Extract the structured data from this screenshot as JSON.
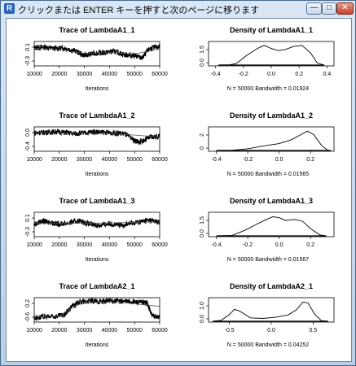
{
  "window": {
    "title": "クリックまたは ENTER キーを押すと次のページに移ります",
    "icon": "R-logo-icon",
    "controls": {
      "minimize": "—",
      "maximize": "□",
      "close": "✕"
    }
  },
  "panels": [
    {
      "trace": {
        "title": "Trace of LambdaA1_1",
        "xlabel": "Iterations",
        "xticks": [
          "10000",
          "20000",
          "30000",
          "40000",
          "50000",
          "60000"
        ],
        "yticks": [
          "0.1",
          "-0.3"
        ],
        "xlim": [
          10000,
          60000
        ],
        "ylim": [
          -0.4,
          0.3
        ],
        "series": [
          [
            10000,
            0.12
          ],
          [
            14000,
            0.14
          ],
          [
            18000,
            0.1
          ],
          [
            22000,
            0.11
          ],
          [
            26000,
            0.04
          ],
          [
            30000,
            -0.1
          ],
          [
            34000,
            -0.04
          ],
          [
            38000,
            -0.02
          ],
          [
            42000,
            0.02
          ],
          [
            46000,
            -0.08
          ],
          [
            50000,
            -0.1
          ],
          [
            53000,
            -0.18
          ],
          [
            56000,
            0.1
          ],
          [
            60000,
            0.16
          ]
        ],
        "trend": [
          [
            10000,
            0.1
          ],
          [
            20000,
            0.08
          ],
          [
            30000,
            -0.04
          ],
          [
            40000,
            -0.02
          ],
          [
            50000,
            -0.06
          ],
          [
            60000,
            0.08
          ]
        ]
      },
      "density": {
        "title": "Density of LambdaA1_1",
        "caption": "N = 50000   Bandwidth = 0.01924",
        "xticks": [
          "-0.4",
          "-0.2",
          "0.0",
          "0.2",
          "0.4"
        ],
        "yticks": [
          "0.0",
          "1.5"
        ],
        "xlim": [
          -0.45,
          0.45
        ],
        "ylim": [
          0,
          2.2
        ],
        "curve": [
          [
            -0.38,
            0
          ],
          [
            -0.3,
            0.02
          ],
          [
            -0.25,
            0.15
          ],
          [
            -0.18,
            0.9
          ],
          [
            -0.1,
            1.6
          ],
          [
            -0.05,
            1.9
          ],
          [
            0.0,
            1.6
          ],
          [
            0.05,
            1.4
          ],
          [
            0.1,
            1.5
          ],
          [
            0.16,
            1.8
          ],
          [
            0.22,
            1.9
          ],
          [
            0.28,
            1.2
          ],
          [
            0.33,
            0.2
          ],
          [
            0.38,
            0
          ]
        ]
      }
    },
    {
      "trace": {
        "title": "Trace of LambdaA1_2",
        "xlabel": "Iterations",
        "xticks": [
          "10000",
          "20000",
          "30000",
          "40000",
          "50000",
          "60000"
        ],
        "yticks": [
          "0.0",
          "-0.4"
        ],
        "xlim": [
          10000,
          60000
        ],
        "ylim": [
          -0.5,
          0.3
        ],
        "series": [
          [
            10000,
            0.1
          ],
          [
            14000,
            0.12
          ],
          [
            18000,
            0.14
          ],
          [
            22000,
            0.12
          ],
          [
            26000,
            0.08
          ],
          [
            30000,
            0.1
          ],
          [
            34000,
            0.14
          ],
          [
            38000,
            0.12
          ],
          [
            42000,
            0.1
          ],
          [
            46000,
            0.08
          ],
          [
            50000,
            -0.15
          ],
          [
            52000,
            -0.2
          ],
          [
            56000,
            -0.05
          ],
          [
            60000,
            0.0
          ]
        ],
        "trend": [
          [
            10000,
            0.11
          ],
          [
            30000,
            0.1
          ],
          [
            45000,
            0.06
          ],
          [
            60000,
            -0.03
          ]
        ]
      },
      "density": {
        "title": "Density of LambdaA1_2",
        "caption": "N = 50000   Bandwidth = 0.01565",
        "xticks": [
          "-0.4",
          "-0.2",
          "0.0",
          "0.2"
        ],
        "yticks": [
          "0",
          "2"
        ],
        "xlim": [
          -0.45,
          0.35
        ],
        "ylim": [
          0,
          4
        ],
        "curve": [
          [
            -0.4,
            0
          ],
          [
            -0.3,
            0.05
          ],
          [
            -0.2,
            0.3
          ],
          [
            -0.1,
            0.8
          ],
          [
            0.0,
            1.2
          ],
          [
            0.08,
            1.9
          ],
          [
            0.14,
            2.8
          ],
          [
            0.18,
            3.4
          ],
          [
            0.22,
            2.8
          ],
          [
            0.27,
            0.9
          ],
          [
            0.31,
            0.05
          ],
          [
            0.33,
            0
          ]
        ]
      }
    },
    {
      "trace": {
        "title": "Trace of LambdaA1_3",
        "xlabel": "Iterations",
        "xticks": [
          "10000",
          "20000",
          "30000",
          "40000",
          "50000",
          "60000"
        ],
        "yticks": [
          "0.1",
          "-0.3"
        ],
        "xlim": [
          10000,
          60000
        ],
        "ylim": [
          -0.4,
          0.3
        ],
        "series": [
          [
            10000,
            -0.05
          ],
          [
            13000,
            0.04
          ],
          [
            16000,
            0.02
          ],
          [
            20000,
            -0.04
          ],
          [
            24000,
            0.0
          ],
          [
            28000,
            0.06
          ],
          [
            32000,
            -0.04
          ],
          [
            36000,
            -0.08
          ],
          [
            40000,
            -0.02
          ],
          [
            44000,
            -0.08
          ],
          [
            48000,
            -0.02
          ],
          [
            52000,
            0.02
          ],
          [
            56000,
            0.08
          ],
          [
            60000,
            0.0
          ]
        ],
        "trend": [
          [
            10000,
            -0.01
          ],
          [
            35000,
            -0.01
          ],
          [
            60000,
            0.02
          ]
        ]
      },
      "density": {
        "title": "Density of LambdaA1_3",
        "caption": "N = 50000   Bandwidth = 0.01567",
        "xticks": [
          "-0.4",
          "-0.2",
          "0.0",
          "0.2"
        ],
        "yticks": [
          "0.0",
          "1.5"
        ],
        "xlim": [
          -0.45,
          0.35
        ],
        "ylim": [
          0,
          2.5
        ],
        "curve": [
          [
            -0.4,
            0
          ],
          [
            -0.3,
            0.05
          ],
          [
            -0.22,
            0.6
          ],
          [
            -0.14,
            1.3
          ],
          [
            -0.08,
            1.8
          ],
          [
            -0.04,
            2.1
          ],
          [
            0.0,
            2.0
          ],
          [
            0.04,
            1.7
          ],
          [
            0.1,
            1.8
          ],
          [
            0.15,
            1.6
          ],
          [
            0.2,
            0.8
          ],
          [
            0.26,
            0.1
          ],
          [
            0.3,
            0
          ]
        ]
      }
    },
    {
      "trace": {
        "title": "Trace of LambdaA2_1",
        "xlabel": "Iterations",
        "xticks": [
          "10000",
          "20000",
          "30000",
          "40000",
          "50000",
          "60000"
        ],
        "yticks": [
          "0.2",
          "-0.6"
        ],
        "xlim": [
          10000,
          60000
        ],
        "ylim": [
          -0.8,
          0.6
        ],
        "series": [
          [
            10000,
            -0.55
          ],
          [
            14000,
            -0.5
          ],
          [
            18000,
            -0.48
          ],
          [
            22000,
            -0.4
          ],
          [
            25000,
            0.1
          ],
          [
            28000,
            0.35
          ],
          [
            32000,
            0.4
          ],
          [
            36000,
            0.38
          ],
          [
            40000,
            0.42
          ],
          [
            44000,
            0.4
          ],
          [
            48000,
            0.38
          ],
          [
            52000,
            0.35
          ],
          [
            55000,
            0.3
          ],
          [
            57000,
            -0.45
          ],
          [
            60000,
            -0.5
          ]
        ],
        "trend": [
          [
            10000,
            -0.5
          ],
          [
            20000,
            -0.45
          ],
          [
            27000,
            0.2
          ],
          [
            35000,
            0.35
          ],
          [
            45000,
            0.32
          ],
          [
            60000,
            0.1
          ]
        ]
      },
      "density": {
        "title": "Density of LambdaA2_1",
        "caption": "N = 50000   Bandwidth = 0.04252",
        "xticks": [
          "-0.5",
          "0.0",
          "0.5"
        ],
        "yticks": [
          "0.0",
          "1.0"
        ],
        "xlim": [
          -0.75,
          0.75
        ],
        "ylim": [
          0,
          2
        ],
        "curve": [
          [
            -0.7,
            0
          ],
          [
            -0.6,
            0.08
          ],
          [
            -0.5,
            0.6
          ],
          [
            -0.44,
            1.05
          ],
          [
            -0.38,
            0.9
          ],
          [
            -0.25,
            0.3
          ],
          [
            -0.1,
            0.25
          ],
          [
            0.05,
            0.35
          ],
          [
            0.2,
            0.55
          ],
          [
            0.3,
            1.0
          ],
          [
            0.38,
            1.7
          ],
          [
            0.44,
            1.6
          ],
          [
            0.52,
            0.6
          ],
          [
            0.6,
            0.05
          ],
          [
            0.68,
            0
          ]
        ]
      }
    }
  ]
}
